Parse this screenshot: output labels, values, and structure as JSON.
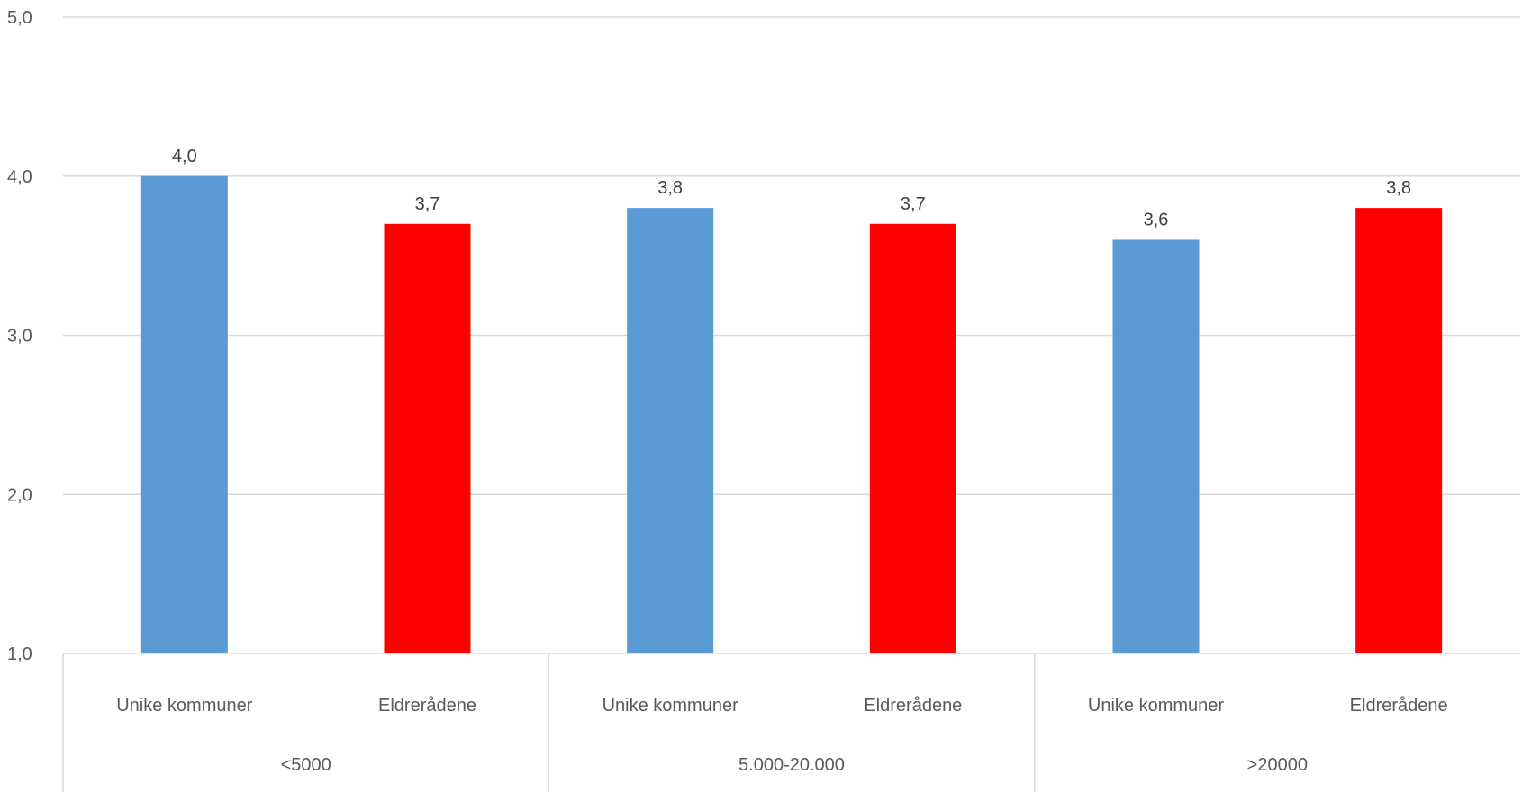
{
  "chart_data": {
    "type": "bar",
    "title": "",
    "xlabel": "",
    "ylabel": "",
    "ylim": [
      1.0,
      5.0
    ],
    "yticks": [
      "1,0",
      "2,0",
      "3,0",
      "4,0",
      "5,0"
    ],
    "grid": true,
    "legend": "none",
    "groups": [
      {
        "label": "<5000",
        "bars": [
          {
            "category": "Unike kommuner",
            "value": 4.0,
            "label": "4,0",
            "color": "#5b9bd5"
          },
          {
            "category": "Eldrerådene",
            "value": 3.7,
            "label": "3,7",
            "color": "#ff0000"
          }
        ]
      },
      {
        "label": "5.000-20.000",
        "bars": [
          {
            "category": "Unike kommuner",
            "value": 3.8,
            "label": "3,8",
            "color": "#5b9bd5"
          },
          {
            "category": "Eldrerådene",
            "value": 3.7,
            "label": "3,7",
            "color": "#ff0000"
          }
        ]
      },
      {
        "label": ">20000",
        "bars": [
          {
            "category": "Unike kommuner",
            "value": 3.6,
            "label": "3,6",
            "color": "#5b9bd5"
          },
          {
            "category": "Eldrerådene",
            "value": 3.8,
            "label": "3,8",
            "color": "#ff0000"
          }
        ]
      }
    ]
  }
}
